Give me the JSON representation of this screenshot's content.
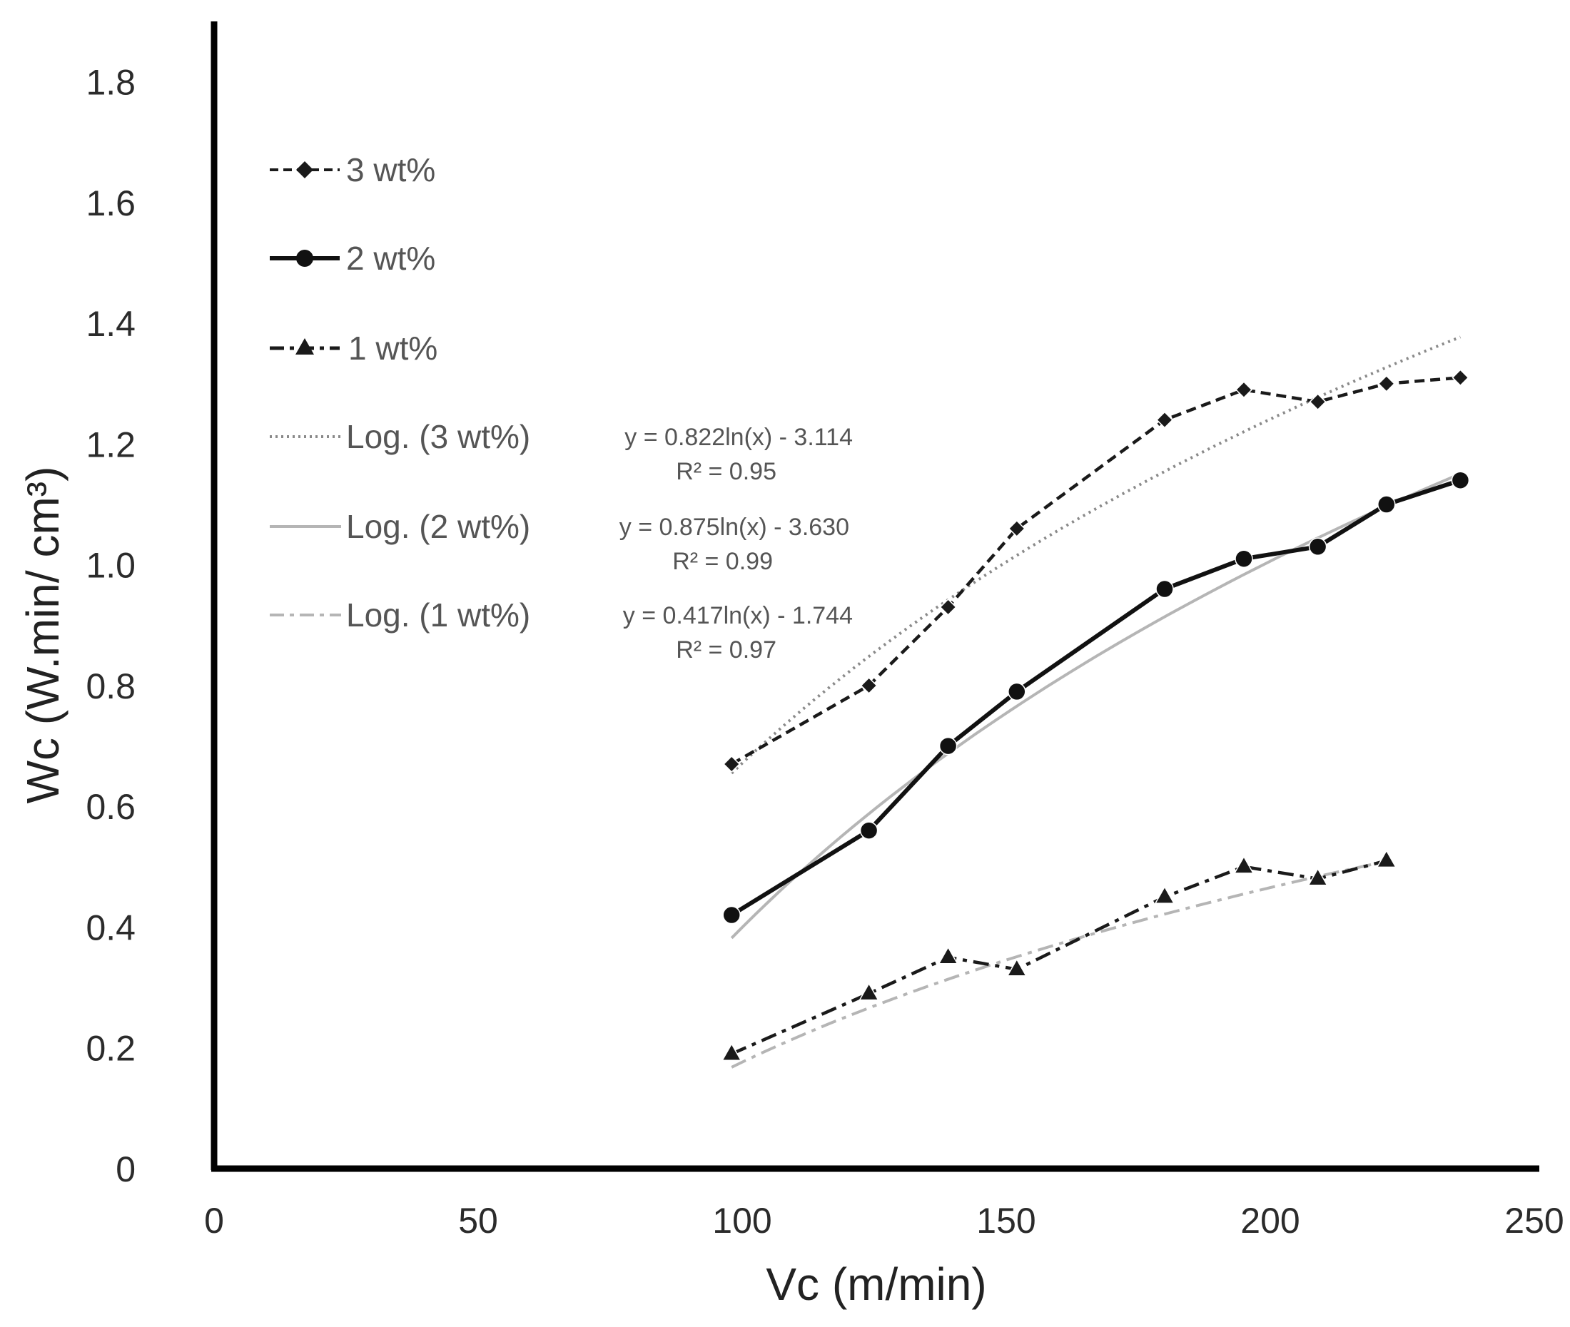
{
  "chart_data": {
    "type": "line",
    "title": "",
    "xlabel": "Vc (m/min)",
    "ylabel": "Wc (W.min/ cm³)",
    "xlim": [
      0,
      250
    ],
    "ylim": [
      0,
      1.9
    ],
    "x_ticks": [
      "0",
      "50",
      "100",
      "150",
      "200",
      "250"
    ],
    "y_ticks": [
      "0",
      "0.2",
      "0.4",
      "0.6",
      "0.8",
      "1.0",
      "1.2",
      "1.4",
      "1.6",
      "1.8"
    ],
    "x_tick_values": [
      0,
      50,
      100,
      150,
      200,
      250
    ],
    "y_tick_values": [
      0,
      0.2,
      0.4,
      0.6,
      0.8,
      1.0,
      1.2,
      1.4,
      1.6,
      1.8
    ],
    "grid": false,
    "legend_position": "top-left",
    "series": [
      {
        "name": "3 wt%",
        "marker": "diamond",
        "line_style": "dashed",
        "color": "#1a1a1a",
        "x": [
          98,
          124,
          139,
          152,
          180,
          195,
          209,
          222,
          236
        ],
        "y": [
          0.67,
          0.8,
          0.93,
          1.06,
          1.24,
          1.29,
          1.27,
          1.3,
          1.31
        ]
      },
      {
        "name": "2 wt%",
        "marker": "circle",
        "line_style": "solid",
        "color": "#111111",
        "x": [
          98,
          124,
          139,
          152,
          180,
          195,
          209,
          222,
          236
        ],
        "y": [
          0.42,
          0.56,
          0.7,
          0.79,
          0.96,
          1.01,
          1.03,
          1.1,
          1.14
        ]
      },
      {
        "name": "1 wt%",
        "marker": "triangle",
        "line_style": "dash-dot",
        "color": "#1a1a1a",
        "x": [
          98,
          124,
          139,
          152,
          180,
          195,
          209,
          222
        ],
        "y": [
          0.19,
          0.29,
          0.35,
          0.33,
          0.45,
          0.5,
          0.48,
          0.51
        ]
      }
    ],
    "trendlines": [
      {
        "name": "Log. (3 wt%)",
        "equation": "y = 0.822ln(x) - 3.114",
        "r2": "R² = 0.95",
        "a": 0.822,
        "b": -3.114,
        "x_range": [
          98,
          236
        ],
        "line_style": "dotted",
        "color": "#8a8a8a"
      },
      {
        "name": "Log. (2 wt%)",
        "equation": "y = 0.875ln(x) - 3.630",
        "r2": "R² = 0.99",
        "a": 0.875,
        "b": -3.63,
        "x_range": [
          98,
          236
        ],
        "line_style": "solid",
        "color": "#b5b5b5"
      },
      {
        "name": "Log. (1 wt%)",
        "equation": "y = 0.417ln(x) - 1.744",
        "r2": "R² = 0.97",
        "a": 0.417,
        "b": -1.744,
        "x_range": [
          98,
          222
        ],
        "line_style": "dash-dot",
        "color": "#b5b5b5"
      }
    ]
  }
}
